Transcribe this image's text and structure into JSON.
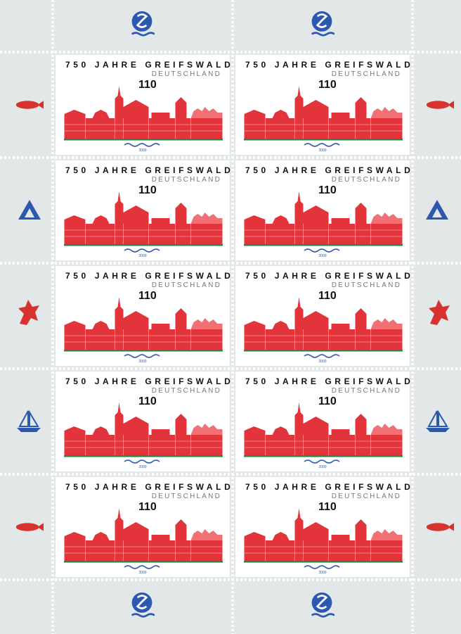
{
  "sheet": {
    "stamps": [
      {
        "title": "750 JAHRE GREIFSWALD",
        "country": "DEUTSCHLAND",
        "value": "110",
        "year": "2000"
      },
      {
        "title": "750 JAHRE GREIFSWALD",
        "country": "DEUTSCHLAND",
        "value": "110",
        "year": "2000"
      },
      {
        "title": "750 JAHRE GREIFSWALD",
        "country": "DEUTSCHLAND",
        "value": "110",
        "year": "2000"
      },
      {
        "title": "750 JAHRE GREIFSWALD",
        "country": "DEUTSCHLAND",
        "value": "110",
        "year": "2000"
      },
      {
        "title": "750 JAHRE GREIFSWALD",
        "country": "DEUTSCHLAND",
        "value": "110",
        "year": "2000"
      },
      {
        "title": "750 JAHRE GREIFSWALD",
        "country": "DEUTSCHLAND",
        "value": "110",
        "year": "2000"
      },
      {
        "title": "750 JAHRE GREIFSWALD",
        "country": "DEUTSCHLAND",
        "value": "110",
        "year": "2000"
      },
      {
        "title": "750 JAHRE GREIFSWALD",
        "country": "DEUTSCHLAND",
        "value": "110",
        "year": "2000"
      },
      {
        "title": "750 JAHRE GREIFSWALD",
        "country": "DEUTSCHLAND",
        "value": "110",
        "year": "2000"
      },
      {
        "title": "750 JAHRE GREIFSWALD",
        "country": "DEUTSCHLAND",
        "value": "110",
        "year": "2000"
      }
    ]
  }
}
